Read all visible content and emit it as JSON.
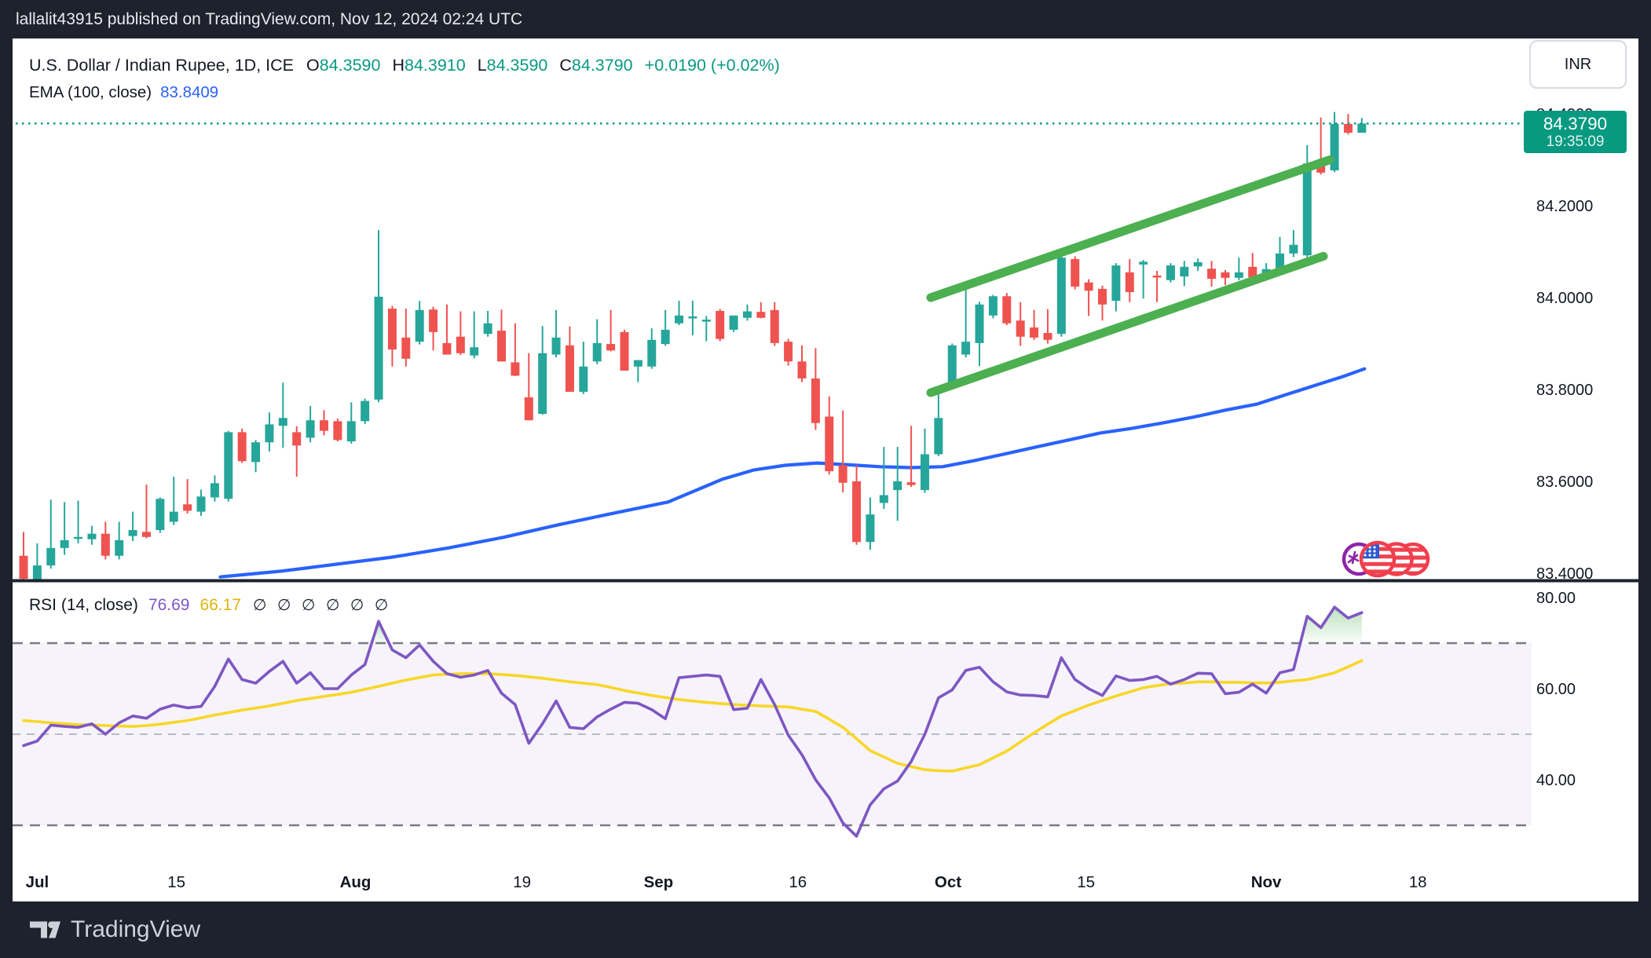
{
  "top_bar": {
    "text": "lallalit43915 published on TradingView.com, Nov 12, 2024 02:24 UTC"
  },
  "header": {
    "symbol": "U.S. Dollar / Indian Rupee, 1D, ICE",
    "ohlc": [
      {
        "k": "O",
        "v": "84.3590"
      },
      {
        "k": "H",
        "v": "84.3910"
      },
      {
        "k": "L",
        "v": "84.3590"
      },
      {
        "k": "C",
        "v": "84.3790"
      }
    ],
    "change": "+0.0190 (+0.02%)",
    "ema_label": "EMA (100, close)",
    "ema_value": "83.8409",
    "currency_button": "INR"
  },
  "price_scale": {
    "last_price_label": "84.3790",
    "countdown": "19:35:09"
  },
  "rsi_header": {
    "label": "RSI (14, close)",
    "value": "76.69",
    "ma_value": "66.17",
    "empty_symbols": "∅ ∅ ∅ ∅ ∅ ∅"
  },
  "footer": {
    "brand": "TradingView"
  },
  "colors": {
    "up": "#26a69a",
    "down": "#ef5350",
    "accent_teal": "#089981",
    "ema_blue": "#2962ff",
    "channel_green": "#4caf50",
    "rsi_purple": "#7e57c2",
    "rsi_yellow": "#f8d727",
    "band_line": "#787b86",
    "band_mid": "#b8bbc4",
    "axis_text": "#131722",
    "frame": "#1e222d"
  },
  "chart_data": {
    "type": "candlestick",
    "title": "U.S. Dollar / Indian Rupee, 1D, ICE",
    "price_axis": {
      "last_price": 84.379,
      "range": [
        83.33,
        84.45
      ],
      "ticks": [
        {
          "label": "84.4000",
          "value": 84.4
        },
        {
          "label": "84.2000",
          "value": 84.2
        },
        {
          "label": "84.0000",
          "value": 84.0
        },
        {
          "label": "83.8000",
          "value": 83.8
        },
        {
          "label": "83.6000",
          "value": 83.6
        },
        {
          "label": "83.4000",
          "value": 83.4
        }
      ]
    },
    "candles": [
      [
        83.438,
        83.49,
        83.385,
        83.388
      ],
      [
        83.386,
        83.465,
        83.38,
        83.417
      ],
      [
        83.417,
        83.56,
        83.41,
        83.455
      ],
      [
        83.455,
        83.555,
        83.44,
        83.472
      ],
      [
        83.475,
        83.558,
        83.465,
        83.479
      ],
      [
        83.474,
        83.503,
        83.462,
        83.486
      ],
      [
        83.486,
        83.512,
        83.43,
        83.438
      ],
      [
        83.438,
        83.512,
        83.43,
        83.472
      ],
      [
        83.481,
        83.534,
        83.47,
        83.494
      ],
      [
        83.49,
        83.593,
        83.476,
        83.479
      ],
      [
        83.494,
        83.565,
        83.488,
        83.562
      ],
      [
        83.512,
        83.61,
        83.505,
        83.534
      ],
      [
        83.55,
        83.605,
        83.53,
        83.536
      ],
      [
        83.534,
        83.582,
        83.525,
        83.567
      ],
      [
        83.565,
        83.613,
        83.556,
        83.596
      ],
      [
        83.562,
        83.71,
        83.556,
        83.707
      ],
      [
        83.707,
        83.715,
        83.64,
        83.644
      ],
      [
        83.642,
        83.69,
        83.62,
        83.685
      ],
      [
        83.685,
        83.75,
        83.665,
        83.724
      ],
      [
        83.721,
        83.815,
        83.673,
        83.738
      ],
      [
        83.707,
        83.72,
        83.61,
        83.678
      ],
      [
        83.695,
        83.764,
        83.685,
        83.733
      ],
      [
        83.733,
        83.755,
        83.7,
        83.71
      ],
      [
        83.731,
        83.737,
        83.687,
        83.69
      ],
      [
        83.687,
        83.772,
        83.682,
        83.731
      ],
      [
        83.731,
        83.78,
        83.725,
        83.775
      ],
      [
        83.778,
        84.147,
        83.772,
        84.002
      ],
      [
        83.976,
        83.982,
        83.85,
        83.887
      ],
      [
        83.913,
        83.976,
        83.85,
        83.867
      ],
      [
        83.904,
        83.993,
        83.898,
        83.973
      ],
      [
        83.974,
        83.98,
        83.885,
        83.925
      ],
      [
        83.901,
        83.985,
        83.876,
        83.876
      ],
      [
        83.915,
        83.97,
        83.875,
        83.879
      ],
      [
        83.874,
        83.97,
        83.868,
        83.892
      ],
      [
        83.921,
        83.971,
        83.915,
        83.944
      ],
      [
        83.928,
        83.974,
        83.861,
        83.861
      ],
      [
        83.859,
        83.944,
        83.829,
        83.83
      ],
      [
        83.783,
        83.879,
        83.733,
        83.733
      ],
      [
        83.747,
        83.938,
        83.745,
        83.879
      ],
      [
        83.876,
        83.973,
        83.87,
        83.913
      ],
      [
        83.896,
        83.937,
        83.795,
        83.795
      ],
      [
        83.795,
        83.904,
        83.79,
        83.85
      ],
      [
        83.861,
        83.953,
        83.855,
        83.901
      ],
      [
        83.899,
        83.973,
        83.883,
        83.885
      ],
      [
        83.925,
        83.93,
        83.841,
        83.841
      ],
      [
        83.85,
        83.864,
        83.816,
        83.864
      ],
      [
        83.85,
        83.933,
        83.845,
        83.908
      ],
      [
        83.899,
        83.973,
        83.895,
        83.93
      ],
      [
        83.944,
        83.993,
        83.94,
        83.961
      ],
      [
        83.955,
        83.993,
        83.918,
        83.959
      ],
      [
        83.95,
        83.96,
        83.905,
        83.952
      ],
      [
        83.971,
        83.975,
        83.905,
        83.91
      ],
      [
        83.93,
        83.955,
        83.925,
        83.961
      ],
      [
        83.956,
        83.985,
        83.95,
        83.97
      ],
      [
        83.969,
        83.99,
        83.955,
        83.956
      ],
      [
        83.973,
        83.99,
        83.895,
        83.901
      ],
      [
        83.904,
        83.91,
        83.852,
        83.861
      ],
      [
        83.861,
        83.896,
        83.816,
        83.824
      ],
      [
        83.824,
        83.89,
        83.712,
        83.727
      ],
      [
        83.741,
        83.785,
        83.615,
        83.622
      ],
      [
        83.635,
        83.754,
        83.576,
        83.597
      ],
      [
        83.6,
        83.635,
        83.462,
        83.468
      ],
      [
        83.468,
        83.565,
        83.451,
        83.528
      ],
      [
        83.553,
        83.675,
        83.54,
        83.57
      ],
      [
        83.581,
        83.675,
        83.514,
        83.6
      ],
      [
        83.598,
        83.721,
        83.588,
        83.592
      ],
      [
        83.581,
        83.715,
        83.575,
        83.659
      ],
      [
        83.659,
        83.808,
        83.655,
        83.738
      ],
      [
        83.805,
        83.9,
        83.8,
        83.896
      ],
      [
        83.876,
        84.024,
        83.87,
        83.904
      ],
      [
        83.901,
        83.991,
        83.851,
        83.985
      ],
      [
        83.961,
        84.006,
        83.955,
        84.003
      ],
      [
        84.003,
        84.01,
        83.94,
        83.944
      ],
      [
        83.95,
        83.99,
        83.895,
        83.915
      ],
      [
        83.935,
        83.973,
        83.908,
        83.913
      ],
      [
        83.923,
        83.975,
        83.9,
        83.908
      ],
      [
        83.921,
        84.104,
        83.915,
        84.087
      ],
      [
        84.084,
        84.09,
        84.018,
        84.024
      ],
      [
        84.033,
        84.04,
        83.96,
        84.015
      ],
      [
        84.019,
        84.026,
        83.95,
        83.985
      ],
      [
        83.993,
        84.075,
        83.97,
        84.07
      ],
      [
        84.055,
        84.084,
        83.99,
        84.012
      ],
      [
        84.072,
        84.082,
        83.998,
        84.078
      ],
      [
        84.048,
        84.058,
        83.99,
        84.044
      ],
      [
        84.038,
        84.075,
        84.033,
        84.07
      ],
      [
        84.046,
        84.08,
        84.025,
        84.067
      ],
      [
        84.068,
        84.085,
        84.058,
        84.077
      ],
      [
        84.063,
        84.08,
        84.024,
        84.041
      ],
      [
        84.055,
        84.06,
        84.027,
        84.043
      ],
      [
        84.043,
        84.087,
        84.038,
        84.055
      ],
      [
        84.067,
        84.097,
        84.04,
        84.044
      ],
      [
        84.053,
        84.075,
        84.046,
        84.062
      ],
      [
        84.063,
        84.132,
        84.058,
        84.096
      ],
      [
        84.096,
        84.147,
        84.088,
        84.115
      ],
      [
        84.092,
        84.332,
        84.088,
        84.292
      ],
      [
        84.292,
        84.392,
        84.268,
        84.272
      ],
      [
        84.277,
        84.404,
        84.273,
        84.378
      ],
      [
        84.378,
        84.4,
        84.355,
        84.359
      ],
      [
        84.359,
        84.391,
        84.359,
        84.379
      ]
    ],
    "ema": {
      "period": 100,
      "last": 83.8409,
      "points": [
        [
          14.4,
          83.392
        ],
        [
          19,
          83.405
        ],
        [
          23,
          83.42
        ],
        [
          27,
          83.435
        ],
        [
          31.1,
          83.455
        ],
        [
          35.1,
          83.478
        ],
        [
          39.1,
          83.505
        ],
        [
          43.1,
          83.53
        ],
        [
          47.2,
          83.555
        ],
        [
          49.2,
          83.58
        ],
        [
          51.2,
          83.605
        ],
        [
          53.5,
          83.625
        ],
        [
          55.8,
          83.635
        ],
        [
          58.1,
          83.64
        ],
        [
          60.4,
          83.636
        ],
        [
          62.7,
          83.632
        ],
        [
          65,
          83.63
        ],
        [
          67.3,
          83.632
        ],
        [
          69.6,
          83.645
        ],
        [
          71.9,
          83.66
        ],
        [
          74.2,
          83.675
        ],
        [
          76.5,
          83.69
        ],
        [
          78.8,
          83.705
        ],
        [
          81.1,
          83.715
        ],
        [
          83.4,
          83.727
        ],
        [
          85.7,
          83.74
        ],
        [
          88,
          83.755
        ],
        [
          90.3,
          83.768
        ],
        [
          92.6,
          83.79
        ],
        [
          94.9,
          83.812
        ],
        [
          96.6,
          83.828
        ],
        [
          98.2,
          83.845
        ]
      ]
    },
    "channel": {
      "upper": {
        "i1": 66.43,
        "p1": 84.0,
        "i2": 95.65,
        "p2": 84.3
      },
      "lower": {
        "i1": 66.43,
        "p1": 83.793,
        "i2": 95.19,
        "p2": 84.09
      }
    },
    "rsi": {
      "period": 14,
      "last": 76.69,
      "ma_last": 66.17,
      "levels": {
        "upper": 70,
        "middle": 50,
        "lower": 30
      },
      "ticks": [
        {
          "label": "80.00",
          "value": 80
        },
        {
          "label": "60.00",
          "value": 60
        },
        {
          "label": "40.00",
          "value": 40
        }
      ],
      "values": [
        47.5,
        48.5,
        52,
        51.7,
        51.5,
        52.3,
        50,
        52.5,
        54,
        53.5,
        55.5,
        56.4,
        55.8,
        56.1,
        60.5,
        66.5,
        62,
        61.2,
        63.8,
        66,
        61.2,
        63.5,
        60,
        60,
        63,
        65.3,
        74.8,
        68.5,
        66.8,
        69.6,
        66,
        63.3,
        62.5,
        63,
        64,
        59,
        56.5,
        48,
        52.3,
        57.3,
        51.5,
        51.2,
        53.8,
        55.5,
        57,
        56.8,
        55.4,
        53.4,
        62.4,
        62.7,
        63,
        62.7,
        55.4,
        55.7,
        62,
        56.5,
        49.8,
        45.5,
        40,
        36,
        30.5,
        27.6,
        34.5,
        38,
        39.7,
        44,
        50,
        58,
        59.7,
        64,
        64.7,
        61.5,
        59.3,
        58.6,
        58.5,
        58.2,
        66.8,
        62,
        60,
        58.5,
        62.8,
        61.8,
        62,
        62.7,
        61,
        62,
        63.4,
        63.3,
        58.9,
        59.2,
        61,
        59,
        63.5,
        64.2,
        75.9,
        73.4,
        77.9,
        75.5,
        76.69
      ],
      "ma_values": [
        53.0,
        52.75,
        52.5,
        52.3,
        52.1,
        52.0,
        51.9,
        51.8,
        51.7,
        51.9,
        52.2,
        52.6,
        53.0,
        53.6,
        54.2,
        54.75,
        55.3,
        55.75,
        56.2,
        56.8,
        57.4,
        57.85,
        58.3,
        58.75,
        59.2,
        59.85,
        60.5,
        61.2,
        61.9,
        62.45,
        63.0,
        63.15,
        63.3,
        63.3,
        63.3,
        63.1,
        62.9,
        62.6,
        62.3,
        61.9,
        61.5,
        61.2,
        60.9,
        60.25,
        59.6,
        59.05,
        58.5,
        58.05,
        57.6,
        57.3,
        57.0,
        56.75,
        56.5,
        56.35,
        56.2,
        56.1,
        56.0,
        55.5,
        55.0,
        53.3,
        51.5,
        49.0,
        46.4,
        45.0,
        43.6,
        42.9,
        42.2,
        42.0,
        41.9,
        42.6,
        43.3,
        44.8,
        46.3,
        48.3,
        50.3,
        52.2,
        54.0,
        55.2,
        56.4,
        57.4,
        58.4,
        59.3,
        60.2,
        60.65,
        61.1,
        61.25,
        61.5,
        61.5,
        61.4,
        61.4,
        61.3,
        61.25,
        61.4,
        61.7,
        62.0,
        62.7,
        63.5,
        64.8,
        66.17
      ]
    },
    "time_axis": [
      {
        "label": "Jul",
        "i": 1.0,
        "bold": true
      },
      {
        "label": "15",
        "i": 11.2,
        "bold": false
      },
      {
        "label": "Aug",
        "i": 24.3,
        "bold": true
      },
      {
        "label": "19",
        "i": 36.5,
        "bold": false
      },
      {
        "label": "Sep",
        "i": 46.5,
        "bold": true
      },
      {
        "label": "16",
        "i": 56.7,
        "bold": false
      },
      {
        "label": "Oct",
        "i": 67.7,
        "bold": true
      },
      {
        "label": "15",
        "i": 77.8,
        "bold": false
      },
      {
        "label": "Nov",
        "i": 91.0,
        "bold": true
      },
      {
        "label": "18",
        "i": 102.1,
        "bold": false
      }
    ]
  }
}
